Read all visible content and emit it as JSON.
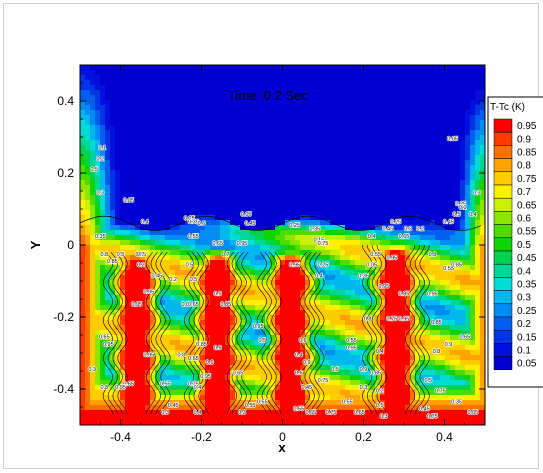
{
  "chart_data": {
    "type": "heatmap",
    "title": "",
    "annotation": "Time :0.2 Sec",
    "xlabel": "x",
    "ylabel": "Y",
    "xlim": [
      -0.5,
      0.5
    ],
    "ylim": [
      -0.5,
      0.5
    ],
    "x_ticks": [
      -0.4,
      -0.2,
      0,
      0.2,
      0.4
    ],
    "x_tick_labels": [
      "-0.4",
      "-0.2",
      "0",
      "0.2",
      "0.4"
    ],
    "y_ticks": [
      -0.4,
      -0.2,
      0,
      0.2,
      0.4
    ],
    "y_tick_labels": [
      "-0.4",
      "-0.2",
      "0",
      "0.2",
      "0.4"
    ],
    "legend": {
      "title": "T-Tc (K)",
      "placement": "right",
      "levels": [
        0.95,
        0.9,
        0.85,
        0.8,
        0.75,
        0.7,
        0.65,
        0.6,
        0.55,
        0.5,
        0.45,
        0.4,
        0.35,
        0.3,
        0.25,
        0.2,
        0.15,
        0.1,
        0.05
      ],
      "level_labels": [
        "0.95",
        "0.9",
        "0.85",
        "0.8",
        "0.75",
        "0.7",
        "0.65",
        "0.6",
        "0.55",
        "0.5",
        "0.45",
        "0.4",
        "0.35",
        "0.3",
        "0.25",
        "0.2",
        "0.15",
        "0.1",
        "0.05"
      ],
      "colors": [
        "#ff0000",
        "#ff3a00",
        "#ff7000",
        "#ffa200",
        "#ffcc00",
        "#fff000",
        "#c8f000",
        "#8ce600",
        "#4cdc00",
        "#10d400",
        "#00d24e",
        "#00d696",
        "#00dcd6",
        "#00b8ee",
        "#008cf0",
        "#0060ee",
        "#0034e6",
        "#0010de",
        "#0000d2"
      ]
    },
    "fingers": [
      {
        "x": -0.36,
        "y_top": -0.02
      },
      {
        "x": -0.16,
        "y_top": -0.02
      },
      {
        "x": 0.02,
        "y_top": -0.02
      },
      {
        "x": 0.28,
        "y_top": 0.0
      }
    ],
    "contour_labels": [
      {
        "x": -0.445,
        "y": 0.265,
        "text": "0.1"
      },
      {
        "x": -0.45,
        "y": 0.235,
        "text": "0.2"
      },
      {
        "x": -0.465,
        "y": 0.205,
        "text": "0.5"
      },
      {
        "x": -0.45,
        "y": 0.14,
        "text": "0.3"
      },
      {
        "x": -0.38,
        "y": 0.12,
        "text": "0.05"
      },
      {
        "x": -0.45,
        "y": 0.02,
        "text": "0.35"
      },
      {
        "x": -0.44,
        "y": -0.03,
        "text": "0.8"
      },
      {
        "x": -0.4,
        "y": -0.03,
        "text": "0.5"
      },
      {
        "x": -0.42,
        "y": -0.05,
        "text": "0.85"
      },
      {
        "x": -0.35,
        "y": -0.03,
        "text": "0.65"
      },
      {
        "x": -0.35,
        "y": -0.03,
        "text": "0.7"
      },
      {
        "x": -0.34,
        "y": 0.06,
        "text": "0.4"
      },
      {
        "x": -0.23,
        "y": 0.07,
        "text": "0.25"
      },
      {
        "x": -0.22,
        "y": 0.06,
        "text": "0.35"
      },
      {
        "x": -0.2,
        "y": 0.055,
        "text": "0.6"
      },
      {
        "x": -0.22,
        "y": 0.02,
        "text": "0.55"
      },
      {
        "x": -0.09,
        "y": 0.08,
        "text": "0.05"
      },
      {
        "x": -0.08,
        "y": 0.055,
        "text": "0.45"
      },
      {
        "x": -0.1,
        "y": 0.0,
        "text": "0.95"
      },
      {
        "x": -0.16,
        "y": 0.0,
        "text": "0.65"
      },
      {
        "x": -0.14,
        "y": -0.03,
        "text": "0.7"
      },
      {
        "x": 0.03,
        "y": 0.05,
        "text": "0.25"
      },
      {
        "x": 0.08,
        "y": 0.04,
        "text": "0.35"
      },
      {
        "x": 0.09,
        "y": 0.01,
        "text": "0.15"
      },
      {
        "x": 0.1,
        "y": 0.0,
        "text": "0.75"
      },
      {
        "x": -0.35,
        "y": -0.06,
        "text": "0.2"
      },
      {
        "x": -0.31,
        "y": -0.09,
        "text": "0.45"
      },
      {
        "x": -0.27,
        "y": -0.1,
        "text": "0.2"
      },
      {
        "x": -0.23,
        "y": -0.06,
        "text": "0.5"
      },
      {
        "x": -0.22,
        "y": -0.1,
        "text": "0.5"
      },
      {
        "x": -0.33,
        "y": -0.135,
        "text": "0.95"
      },
      {
        "x": -0.36,
        "y": -0.17,
        "text": "0.95"
      },
      {
        "x": -0.24,
        "y": -0.17,
        "text": "0.8"
      },
      {
        "x": -0.22,
        "y": -0.17,
        "text": "0.65"
      },
      {
        "x": -0.16,
        "y": -0.14,
        "text": "0.9"
      },
      {
        "x": -0.14,
        "y": -0.17,
        "text": "0.85"
      },
      {
        "x": -0.06,
        "y": -0.23,
        "text": "0.95"
      },
      {
        "x": 0.03,
        "y": -0.06,
        "text": "0.95"
      },
      {
        "x": 0.1,
        "y": -0.06,
        "text": "0.25"
      },
      {
        "x": 0.09,
        "y": -0.09,
        "text": "0.4"
      },
      {
        "x": 0.23,
        "y": -0.03,
        "text": "0.55"
      },
      {
        "x": 0.27,
        "y": -0.04,
        "text": "0.95"
      },
      {
        "x": 0.22,
        "y": -0.06,
        "text": "0.05"
      },
      {
        "x": 0.2,
        "y": -0.09,
        "text": "0.35"
      },
      {
        "x": 0.25,
        "y": -0.12,
        "text": "0.95"
      },
      {
        "x": 0.3,
        "y": -0.14,
        "text": "0.85"
      },
      {
        "x": 0.3,
        "y": -0.21,
        "text": "0.95"
      },
      {
        "x": 0.21,
        "y": -0.21,
        "text": "0.8"
      },
      {
        "x": 0.27,
        "y": -0.21,
        "text": "0.75"
      },
      {
        "x": 0.22,
        "y": 0.02,
        "text": "0.4"
      },
      {
        "x": 0.26,
        "y": 0.04,
        "text": "0.45"
      },
      {
        "x": 0.28,
        "y": 0.06,
        "text": "0.25"
      },
      {
        "x": 0.3,
        "y": 0.02,
        "text": "0.65"
      },
      {
        "x": 0.31,
        "y": 0.04,
        "text": "0.3"
      },
      {
        "x": 0.34,
        "y": 0.04,
        "text": "0.2"
      },
      {
        "x": 0.41,
        "y": 0.06,
        "text": "0.45"
      },
      {
        "x": 0.44,
        "y": 0.11,
        "text": "0.25"
      },
      {
        "x": 0.445,
        "y": 0.1,
        "text": "0.1"
      },
      {
        "x": 0.43,
        "y": 0.08,
        "text": "0.5"
      },
      {
        "x": 0.47,
        "y": 0.08,
        "text": "0.4"
      },
      {
        "x": 0.48,
        "y": 0.14,
        "text": "0.3"
      },
      {
        "x": 0.42,
        "y": 0.29,
        "text": "0.05"
      },
      {
        "x": 0.37,
        "y": -0.03,
        "text": "0.8"
      },
      {
        "x": 0.41,
        "y": -0.07,
        "text": "0.55"
      },
      {
        "x": 0.43,
        "y": -0.06,
        "text": "0.85"
      },
      {
        "x": 0.37,
        "y": -0.14,
        "text": "0.95"
      },
      {
        "x": 0.38,
        "y": -0.22,
        "text": "0.85"
      },
      {
        "x": 0.41,
        "y": -0.28,
        "text": "0.9"
      },
      {
        "x": 0.38,
        "y": -0.3,
        "text": "0.8"
      },
      {
        "x": 0.45,
        "y": -0.26,
        "text": "0.65"
      },
      {
        "x": -0.44,
        "y": -0.26,
        "text": "0.65"
      },
      {
        "x": -0.43,
        "y": -0.28,
        "text": "0.95"
      },
      {
        "x": -0.33,
        "y": -0.31,
        "text": "0.95"
      },
      {
        "x": -0.25,
        "y": -0.31,
        "text": "0.8"
      },
      {
        "x": -0.2,
        "y": -0.28,
        "text": "0.85"
      },
      {
        "x": -0.22,
        "y": -0.32,
        "text": "0.65"
      },
      {
        "x": -0.18,
        "y": -0.33,
        "text": "0.6"
      },
      {
        "x": -0.16,
        "y": -0.29,
        "text": "0.9"
      },
      {
        "x": -0.05,
        "y": -0.27,
        "text": "0.5"
      },
      {
        "x": 0.05,
        "y": -0.27,
        "text": "0.6"
      },
      {
        "x": 0.04,
        "y": -0.31,
        "text": "0.4"
      },
      {
        "x": 0.06,
        "y": -0.33,
        "text": "0.9"
      },
      {
        "x": 0.13,
        "y": -0.35,
        "text": "0.5"
      },
      {
        "x": 0.17,
        "y": -0.27,
        "text": "0.55"
      },
      {
        "x": 0.17,
        "y": -0.29,
        "text": "0.95"
      },
      {
        "x": 0.24,
        "y": -0.3,
        "text": "0.4"
      },
      {
        "x": 0.2,
        "y": -0.35,
        "text": "0.9"
      },
      {
        "x": 0.23,
        "y": -0.36,
        "text": "0.85"
      },
      {
        "x": -0.44,
        "y": -0.4,
        "text": "0.8"
      },
      {
        "x": -0.38,
        "y": -0.39,
        "text": "0.65"
      },
      {
        "x": -0.4,
        "y": -0.4,
        "text": "0.95"
      },
      {
        "x": -0.47,
        "y": -0.35,
        "text": "0.3"
      },
      {
        "x": -0.29,
        "y": -0.39,
        "text": "0.55"
      },
      {
        "x": -0.22,
        "y": -0.39,
        "text": "0.75"
      },
      {
        "x": -0.21,
        "y": -0.4,
        "text": "0.4"
      },
      {
        "x": -0.19,
        "y": -0.37,
        "text": "0.95"
      },
      {
        "x": -0.11,
        "y": -0.36,
        "text": "0.65"
      },
      {
        "x": -0.05,
        "y": -0.44,
        "text": "0.55"
      },
      {
        "x": 0.04,
        "y": -0.36,
        "text": "0.6"
      },
      {
        "x": 0.06,
        "y": -0.4,
        "text": "0.45"
      },
      {
        "x": 0.1,
        "y": -0.38,
        "text": "0.75"
      },
      {
        "x": 0.16,
        "y": -0.44,
        "text": "0.55"
      },
      {
        "x": 0.2,
        "y": -0.4,
        "text": "0.3"
      },
      {
        "x": 0.24,
        "y": -0.41,
        "text": "0.2"
      },
      {
        "x": 0.24,
        "y": -0.45,
        "text": "0.5"
      },
      {
        "x": 0.36,
        "y": -0.38,
        "text": "0.5"
      },
      {
        "x": 0.39,
        "y": -0.41,
        "text": "0.75"
      },
      {
        "x": 0.43,
        "y": -0.44,
        "text": "0.35"
      },
      {
        "x": 0.47,
        "y": -0.47,
        "text": "0.05"
      },
      {
        "x": -0.27,
        "y": -0.45,
        "text": "0.45"
      },
      {
        "x": -0.29,
        "y": -0.47,
        "text": "0.3"
      },
      {
        "x": -0.21,
        "y": -0.47,
        "text": "0.4"
      },
      {
        "x": -0.1,
        "y": -0.47,
        "text": "0.3"
      },
      {
        "x": -0.08,
        "y": -0.45,
        "text": "0.55"
      },
      {
        "x": 0.04,
        "y": -0.46,
        "text": "0.55"
      },
      {
        "x": 0.07,
        "y": -0.47,
        "text": "0.65"
      },
      {
        "x": 0.12,
        "y": -0.47,
        "text": "0.75"
      },
      {
        "x": 0.19,
        "y": -0.47,
        "text": "0.65"
      },
      {
        "x": 0.25,
        "y": -0.48,
        "text": "0.3"
      },
      {
        "x": 0.35,
        "y": -0.46,
        "text": "0.45"
      },
      {
        "x": 0.37,
        "y": -0.48,
        "text": "0.75"
      }
    ]
  }
}
